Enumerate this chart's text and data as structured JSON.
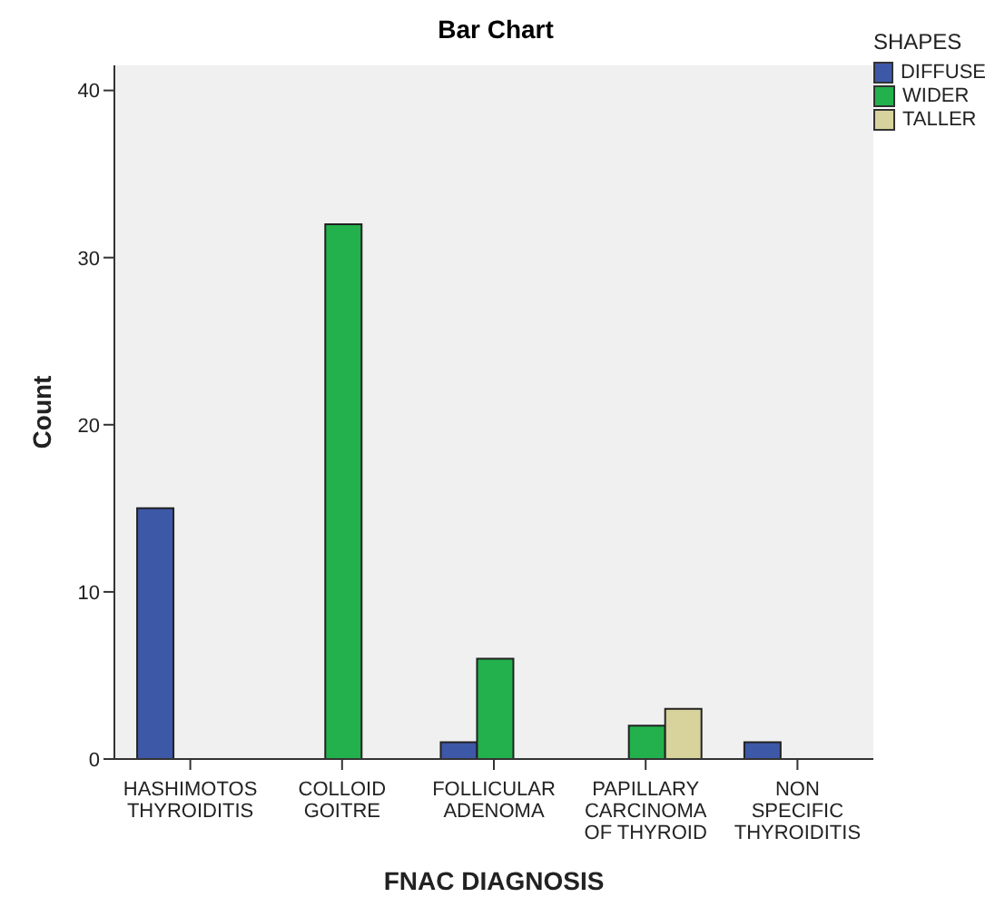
{
  "chart_data": {
    "type": "bar",
    "title": "Bar Chart",
    "xlabel": "FNAC DIAGNOSIS",
    "ylabel": "Count",
    "legend_title": "SHAPES",
    "legend": "top right",
    "grid": false,
    "categories": [
      "HASHIMOTOS THYROIDITIS",
      "COLLOID GOITRE",
      "FOLLICULAR ADENOMA",
      "PAPILLARY CARCINOMA OF THYROID",
      "NON SPECIFIC THYROIDITIS"
    ],
    "series": [
      {
        "name": "DIFFUSE",
        "color": "#3e58a8",
        "values": [
          15,
          null,
          1,
          null,
          1
        ]
      },
      {
        "name": "WIDER",
        "color": "#22b14c",
        "values": [
          null,
          32,
          6,
          2,
          null
        ]
      },
      {
        "name": "TALLER",
        "color": "#d8d29c",
        "values": [
          null,
          null,
          null,
          3,
          null
        ]
      }
    ],
    "ylim": [
      0,
      41.5
    ],
    "yticks": [
      0,
      10,
      20,
      30,
      40
    ]
  }
}
